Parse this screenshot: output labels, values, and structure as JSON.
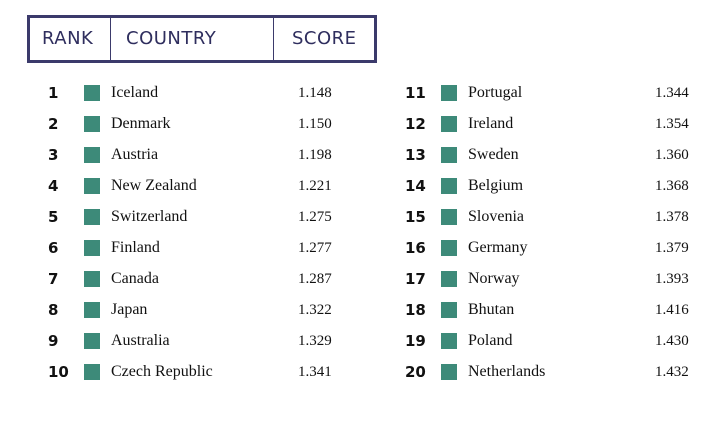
{
  "table": {
    "columns": [
      "RANK",
      "COUNTRY",
      "SCORE"
    ],
    "rows": [
      [
        "1",
        "Iceland",
        "1.148"
      ],
      [
        "2",
        "Denmark",
        "1.150"
      ],
      [
        "3",
        "Austria",
        "1.198"
      ],
      [
        "4",
        "New Zealand",
        "1.221"
      ],
      [
        "5",
        "Switzerland",
        "1.275"
      ],
      [
        "6",
        "Finland",
        "1.277"
      ],
      [
        "7",
        "Canada",
        "1.287"
      ],
      [
        "8",
        "Japan",
        "1.322"
      ],
      [
        "9",
        "Australia",
        "1.329"
      ],
      [
        "10",
        "Czech Republic",
        "1.341"
      ],
      [
        "11",
        "Portugal",
        "1.344"
      ],
      [
        "12",
        "Ireland",
        "1.354"
      ],
      [
        "13",
        "Sweden",
        "1.360"
      ],
      [
        "14",
        "Belgium",
        "1.368"
      ],
      [
        "15",
        "Slovenia",
        "1.378"
      ],
      [
        "16",
        "Germany",
        "1.379"
      ],
      [
        "17",
        "Norway",
        "1.393"
      ],
      [
        "18",
        "Bhutan",
        "1.416"
      ],
      [
        "19",
        "Poland",
        "1.430"
      ],
      [
        "20",
        "Netherlands",
        "1.432"
      ]
    ]
  }
}
